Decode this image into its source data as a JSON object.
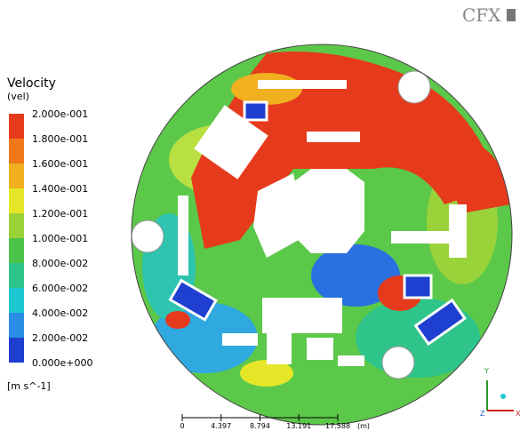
{
  "header": {
    "logo": "CFX"
  },
  "legend": {
    "title": "Velocity",
    "variable": "(vel)",
    "labels": [
      "2.000e-001",
      "1.800e-001",
      "1.600e-001",
      "1.400e-001",
      "1.200e-001",
      "1.000e-001",
      "8.000e-002",
      "6.000e-002",
      "4.000e-002",
      "2.000e-002",
      "0.000e+000"
    ],
    "units": "[m s^-1]"
  },
  "scale_bar": {
    "labels": [
      "0",
      "4.397",
      "8.794",
      "13.191",
      "17.588"
    ],
    "units": "(m)"
  },
  "axes": {
    "y": "Y",
    "z": "Z",
    "x": "X"
  }
}
